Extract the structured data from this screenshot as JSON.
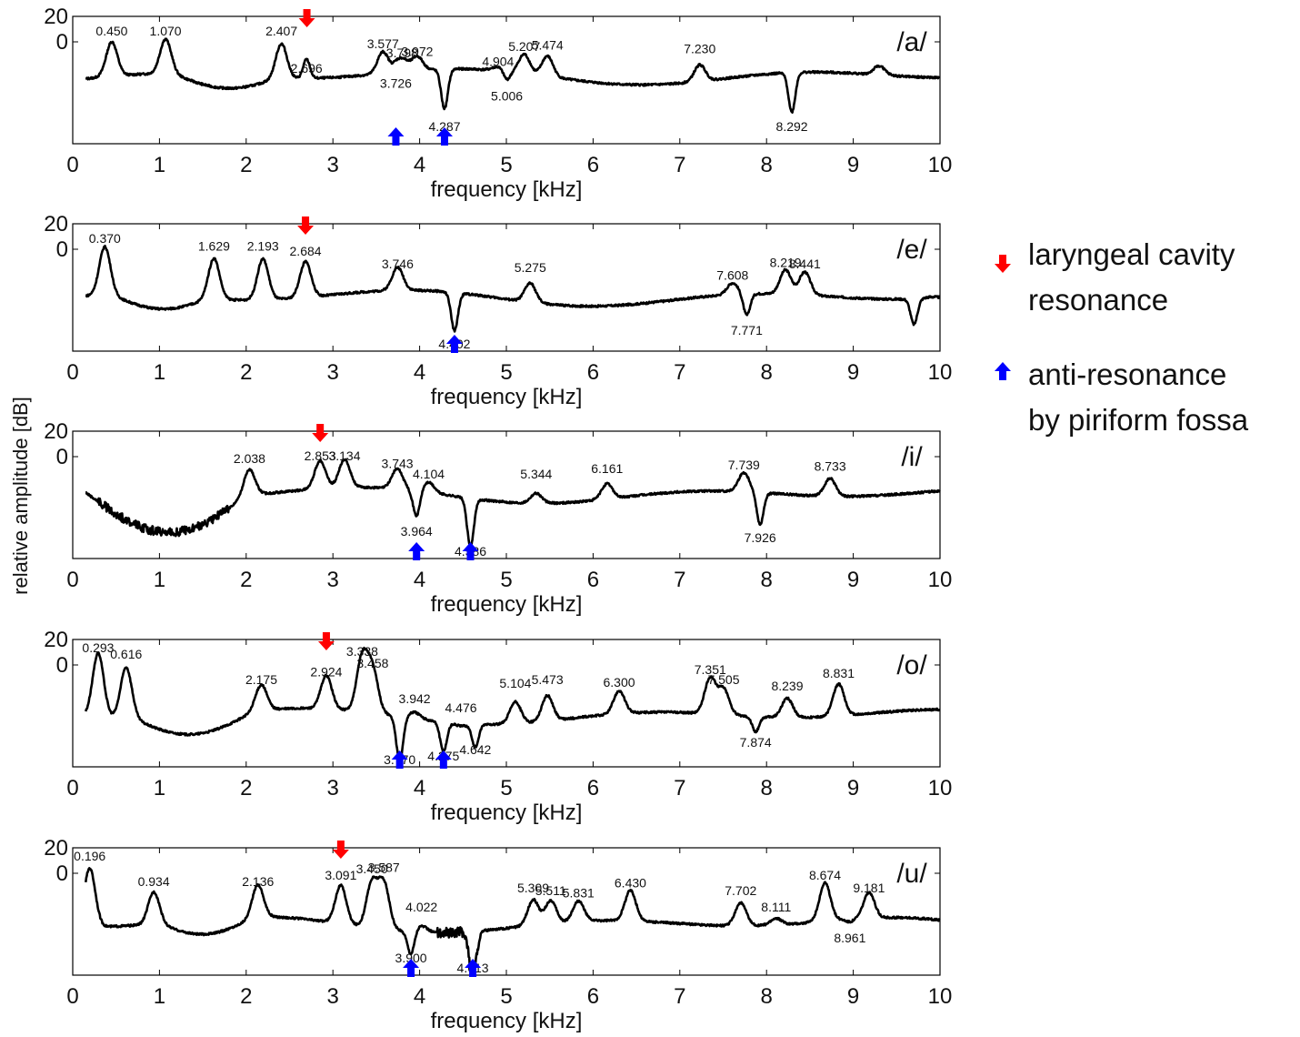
{
  "chart_data": {
    "ylabel": "relative amplitude [dB]",
    "legend": [
      {
        "marker": "down-arrow",
        "color": "#ff0000",
        "lines": [
          "laryngeal cavity",
          "resonance"
        ]
      },
      {
        "marker": "up-arrow",
        "color": "#0000ff",
        "lines": [
          "anti-resonance",
          "by piriform fossa"
        ]
      }
    ],
    "panels": [
      {
        "type": "line",
        "vowel": "/a/",
        "xlabel": "frequency [kHz]",
        "xlim": [
          0,
          10
        ],
        "xticks": [
          "0",
          "1",
          "2",
          "3",
          "4",
          "5",
          "6",
          "7",
          "8",
          "9",
          "10"
        ],
        "ylim": [
          -80,
          20
        ],
        "yticks": [
          "20",
          "0"
        ],
        "baseline": -27,
        "red_markers": [
          2.7
        ],
        "blue_markers": [
          3.726,
          4.287
        ],
        "features": [
          {
            "f": 0.45,
            "db": 0,
            "label": "0.450",
            "type": "peak"
          },
          {
            "f": 1.07,
            "db": 0,
            "label": "1.070",
            "type": "peak"
          },
          {
            "f": 2.407,
            "db": 0,
            "label": "2.407",
            "type": "peak"
          },
          {
            "f": 2.696,
            "db": -12,
            "label": "2.696",
            "type": "dip"
          },
          {
            "f": 3.577,
            "db": -10,
            "label": "3.577",
            "type": "peak"
          },
          {
            "f": 3.726,
            "db": -24,
            "label": "3.726",
            "type": "dip"
          },
          {
            "f": 3.798,
            "db": -17,
            "label": "3.798",
            "type": "peak"
          },
          {
            "f": 3.972,
            "db": -16,
            "label": "3.972",
            "type": "peak"
          },
          {
            "f": 4.287,
            "db": -58,
            "label": "4.287",
            "type": "dip"
          },
          {
            "f": 4.904,
            "db": -24,
            "label": "4.904",
            "type": "peak"
          },
          {
            "f": 5.006,
            "db": -34,
            "label": "5.006",
            "type": "dip"
          },
          {
            "f": 5.207,
            "db": -12,
            "label": "5.207",
            "type": "peak"
          },
          {
            "f": 5.474,
            "db": -11,
            "label": "5.474",
            "type": "peak"
          },
          {
            "f": 7.23,
            "db": -14,
            "label": "7.230",
            "type": "peak"
          },
          {
            "f": 8.292,
            "db": -58,
            "label": "8.292",
            "type": "dip"
          },
          {
            "f": 9.3,
            "db": -20,
            "label": "",
            "type": "peak"
          }
        ]
      },
      {
        "type": "line",
        "vowel": "/e/",
        "xlabel": "frequency [kHz]",
        "xlim": [
          0,
          10
        ],
        "xticks": [
          "0",
          "1",
          "2",
          "3",
          "4",
          "5",
          "6",
          "7",
          "8",
          "9",
          "10"
        ],
        "ylim": [
          -80,
          20
        ],
        "yticks": [
          "20",
          "0"
        ],
        "baseline": -38,
        "red_markers": [
          2.684
        ],
        "blue_markers": [
          4.402
        ],
        "features": [
          {
            "f": 0.37,
            "db": 0,
            "label": "0.370",
            "type": "peak"
          },
          {
            "f": 1.629,
            "db": -6,
            "label": "1.629",
            "type": "peak"
          },
          {
            "f": 2.193,
            "db": -6,
            "label": "2.193",
            "type": "peak"
          },
          {
            "f": 2.684,
            "db": -10,
            "label": "2.684",
            "type": "peak"
          },
          {
            "f": 3.746,
            "db": -20,
            "label": "3.746",
            "type": "peak"
          },
          {
            "f": 4.402,
            "db": -68,
            "label": "4.402",
            "type": "dip"
          },
          {
            "f": 5.275,
            "db": -23,
            "label": "5.275",
            "type": "peak"
          },
          {
            "f": 7.608,
            "db": -29,
            "label": "7.608",
            "type": "peak"
          },
          {
            "f": 7.771,
            "db": -55,
            "label": "7.771",
            "type": "dip"
          },
          {
            "f": 8.219,
            "db": -19,
            "label": "8.219",
            "type": "peak"
          },
          {
            "f": 8.441,
            "db": -20,
            "label": "8.441",
            "type": "peak"
          },
          {
            "f": 9.7,
            "db": -58,
            "label": "",
            "type": "dip"
          },
          {
            "f": 9.9,
            "db": -37,
            "label": "",
            "type": "peak"
          }
        ]
      },
      {
        "type": "line",
        "vowel": "/i/",
        "xlabel": "frequency [kHz]",
        "xlim": [
          0,
          10
        ],
        "xticks": [
          "0",
          "1",
          "2",
          "3",
          "4",
          "5",
          "6",
          "7",
          "8",
          "9",
          "10"
        ],
        "ylim": [
          -80,
          20
        ],
        "yticks": [
          "20",
          "0"
        ],
        "baseline": -30,
        "red_markers": [
          2.853
        ],
        "blue_markers": [
          3.964,
          4.586
        ],
        "features": [
          {
            "f": 2.038,
            "db": -10,
            "label": "2.038",
            "type": "peak"
          },
          {
            "f": 2.853,
            "db": -8,
            "label": "2.853",
            "type": "peak"
          },
          {
            "f": 3.134,
            "db": -8,
            "label": "3.134",
            "type": "peak"
          },
          {
            "f": 3.743,
            "db": -14,
            "label": "3.743",
            "type": "peak"
          },
          {
            "f": 3.964,
            "db": -50,
            "label": "3.964",
            "type": "dip"
          },
          {
            "f": 4.104,
            "db": -22,
            "label": "4.104",
            "type": "peak"
          },
          {
            "f": 4.586,
            "db": -68,
            "label": "4.586",
            "type": "dip"
          },
          {
            "f": 5.344,
            "db": -22,
            "label": "5.344",
            "type": "peak"
          },
          {
            "f": 6.161,
            "db": -18,
            "label": "6.161",
            "type": "peak"
          },
          {
            "f": 7.739,
            "db": -15,
            "label": "7.739",
            "type": "peak"
          },
          {
            "f": 7.926,
            "db": -55,
            "label": "7.926",
            "type": "dip"
          },
          {
            "f": 8.733,
            "db": -16,
            "label": "8.733",
            "type": "peak"
          }
        ]
      },
      {
        "type": "line",
        "vowel": "/o/",
        "xlabel": "frequency [kHz]",
        "xlim": [
          0,
          10
        ],
        "xticks": [
          "0",
          "1",
          "2",
          "3",
          "4",
          "5",
          "6",
          "7",
          "8",
          "9",
          "10"
        ],
        "ylim": [
          -80,
          20
        ],
        "yticks": [
          "20",
          "0"
        ],
        "baseline": -40,
        "red_markers": [
          2.924
        ],
        "blue_markers": [
          3.77,
          4.275
        ],
        "features": [
          {
            "f": 0.293,
            "db": 10,
            "label": "0.293",
            "type": "peak"
          },
          {
            "f": 0.616,
            "db": 0,
            "label": "0.616",
            "type": "peak"
          },
          {
            "f": 2.175,
            "db": -20,
            "label": "2.175",
            "type": "peak"
          },
          {
            "f": 2.924,
            "db": -14,
            "label": "2.924",
            "type": "peak"
          },
          {
            "f": 3.338,
            "db": 2,
            "label": "3.338",
            "type": "peak"
          },
          {
            "f": 3.458,
            "db": -7,
            "label": "3.458",
            "type": "peak"
          },
          {
            "f": 3.77,
            "db": -75,
            "label": "3.770",
            "type": "dip"
          },
          {
            "f": 3.942,
            "db": -35,
            "label": "3.942",
            "type": "peak"
          },
          {
            "f": 4.275,
            "db": -63,
            "label": "4.275",
            "type": "dip"
          },
          {
            "f": 4.476,
            "db": -42,
            "label": "4.476",
            "type": "peak"
          },
          {
            "f": 4.642,
            "db": -58,
            "label": "4.642",
            "type": "dip"
          },
          {
            "f": 5.104,
            "db": -23,
            "label": "5.104",
            "type": "peak"
          },
          {
            "f": 5.473,
            "db": -20,
            "label": "5.473",
            "type": "peak"
          },
          {
            "f": 6.3,
            "db": -22,
            "label": "6.300",
            "type": "peak"
          },
          {
            "f": 7.351,
            "db": -12,
            "label": "7.351",
            "type": "peak"
          },
          {
            "f": 7.505,
            "db": -20,
            "label": "7.505",
            "type": "peak"
          },
          {
            "f": 7.874,
            "db": -52,
            "label": "7.874",
            "type": "dip"
          },
          {
            "f": 8.239,
            "db": -25,
            "label": "8.239",
            "type": "peak"
          },
          {
            "f": 8.831,
            "db": -15,
            "label": "8.831",
            "type": "peak"
          }
        ]
      },
      {
        "type": "line",
        "vowel": "/u/",
        "xlabel": "frequency [kHz]",
        "xlim": [
          0,
          10
        ],
        "xticks": [
          "0",
          "1",
          "2",
          "3",
          "4",
          "5",
          "6",
          "7",
          "8",
          "9",
          "10"
        ],
        "ylim": [
          -80,
          20
        ],
        "yticks": [
          "20",
          "0"
        ],
        "baseline": -40,
        "red_markers": [
          3.091
        ],
        "blue_markers": [
          3.9,
          4.613
        ],
        "features": [
          {
            "f": 0.196,
            "db": 6,
            "label": "0.196",
            "type": "peak"
          },
          {
            "f": 0.934,
            "db": -15,
            "label": "0.934",
            "type": "peak"
          },
          {
            "f": 2.136,
            "db": -15,
            "label": "2.136",
            "type": "peak"
          },
          {
            "f": 3.091,
            "db": -10,
            "label": "3.091",
            "type": "peak"
          },
          {
            "f": 3.45,
            "db": -5,
            "label": "3.450",
            "type": "peak"
          },
          {
            "f": 3.587,
            "db": -4,
            "label": "3.587",
            "type": "peak"
          },
          {
            "f": 3.9,
            "db": -58,
            "label": "3.900",
            "type": "dip"
          },
          {
            "f": 4.022,
            "db": -35,
            "label": "4.022",
            "type": "peak"
          },
          {
            "f": 4.613,
            "db": -78,
            "label": "4.613",
            "type": "dip"
          },
          {
            "f": 5.309,
            "db": -20,
            "label": "5.309",
            "type": "peak"
          },
          {
            "f": 5.511,
            "db": -22,
            "label": "5.511",
            "type": "peak"
          },
          {
            "f": 5.831,
            "db": -24,
            "label": "5.831",
            "type": "peak"
          },
          {
            "f": 6.43,
            "db": -16,
            "label": "6.430",
            "type": "peak"
          },
          {
            "f": 7.702,
            "db": -22,
            "label": "7.702",
            "type": "peak"
          },
          {
            "f": 8.111,
            "db": -35,
            "label": "8.111",
            "type": "peak"
          },
          {
            "f": 8.674,
            "db": -10,
            "label": "8.674",
            "type": "peak"
          },
          {
            "f": 8.961,
            "db": -42,
            "label": "8.961",
            "type": "dip"
          },
          {
            "f": 9.181,
            "db": -20,
            "label": "9.181",
            "type": "peak"
          }
        ]
      }
    ]
  }
}
